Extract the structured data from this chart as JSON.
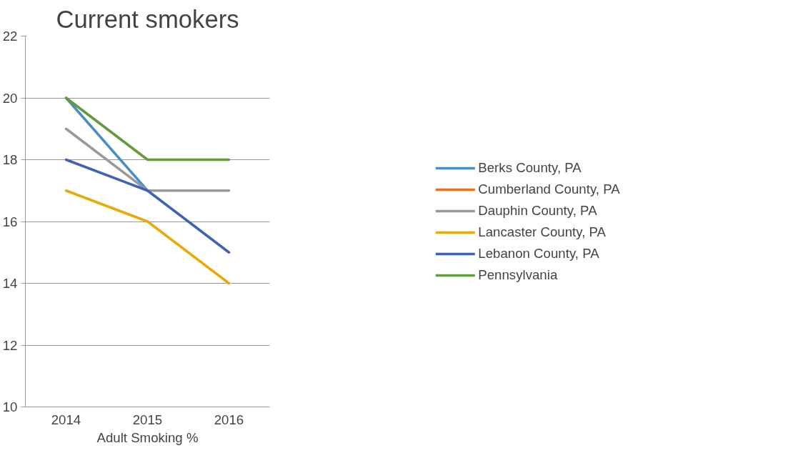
{
  "chart_data": {
    "type": "line",
    "title": "Current smokers",
    "xlabel": "Adult Smoking %",
    "categories": [
      "2014",
      "2015",
      "2016"
    ],
    "series": [
      {
        "name": "Berks County, PA",
        "color": "#4a8cc8",
        "values": [
          20,
          17,
          null
        ]
      },
      {
        "name": "Cumberland County, PA",
        "color": "#e8731e",
        "values": [
          null,
          null,
          null
        ]
      },
      {
        "name": "Dauphin County, PA",
        "color": "#999999",
        "values": [
          19,
          17,
          17
        ]
      },
      {
        "name": "Lancaster County, PA",
        "color": "#e6aa0a",
        "values": [
          17,
          16,
          14
        ]
      },
      {
        "name": "Lebanon County, PA",
        "color": "#3e63b0",
        "values": [
          18,
          17,
          15
        ]
      },
      {
        "name": "Pennsylvania",
        "color": "#629b3a",
        "values": [
          20,
          18,
          18
        ]
      }
    ],
    "ylim": [
      10,
      22
    ],
    "yticks": [
      10,
      12,
      14,
      16,
      18,
      20,
      22
    ],
    "grid": "y",
    "legend": "right",
    "marker": "none",
    "line_style": "solid"
  }
}
